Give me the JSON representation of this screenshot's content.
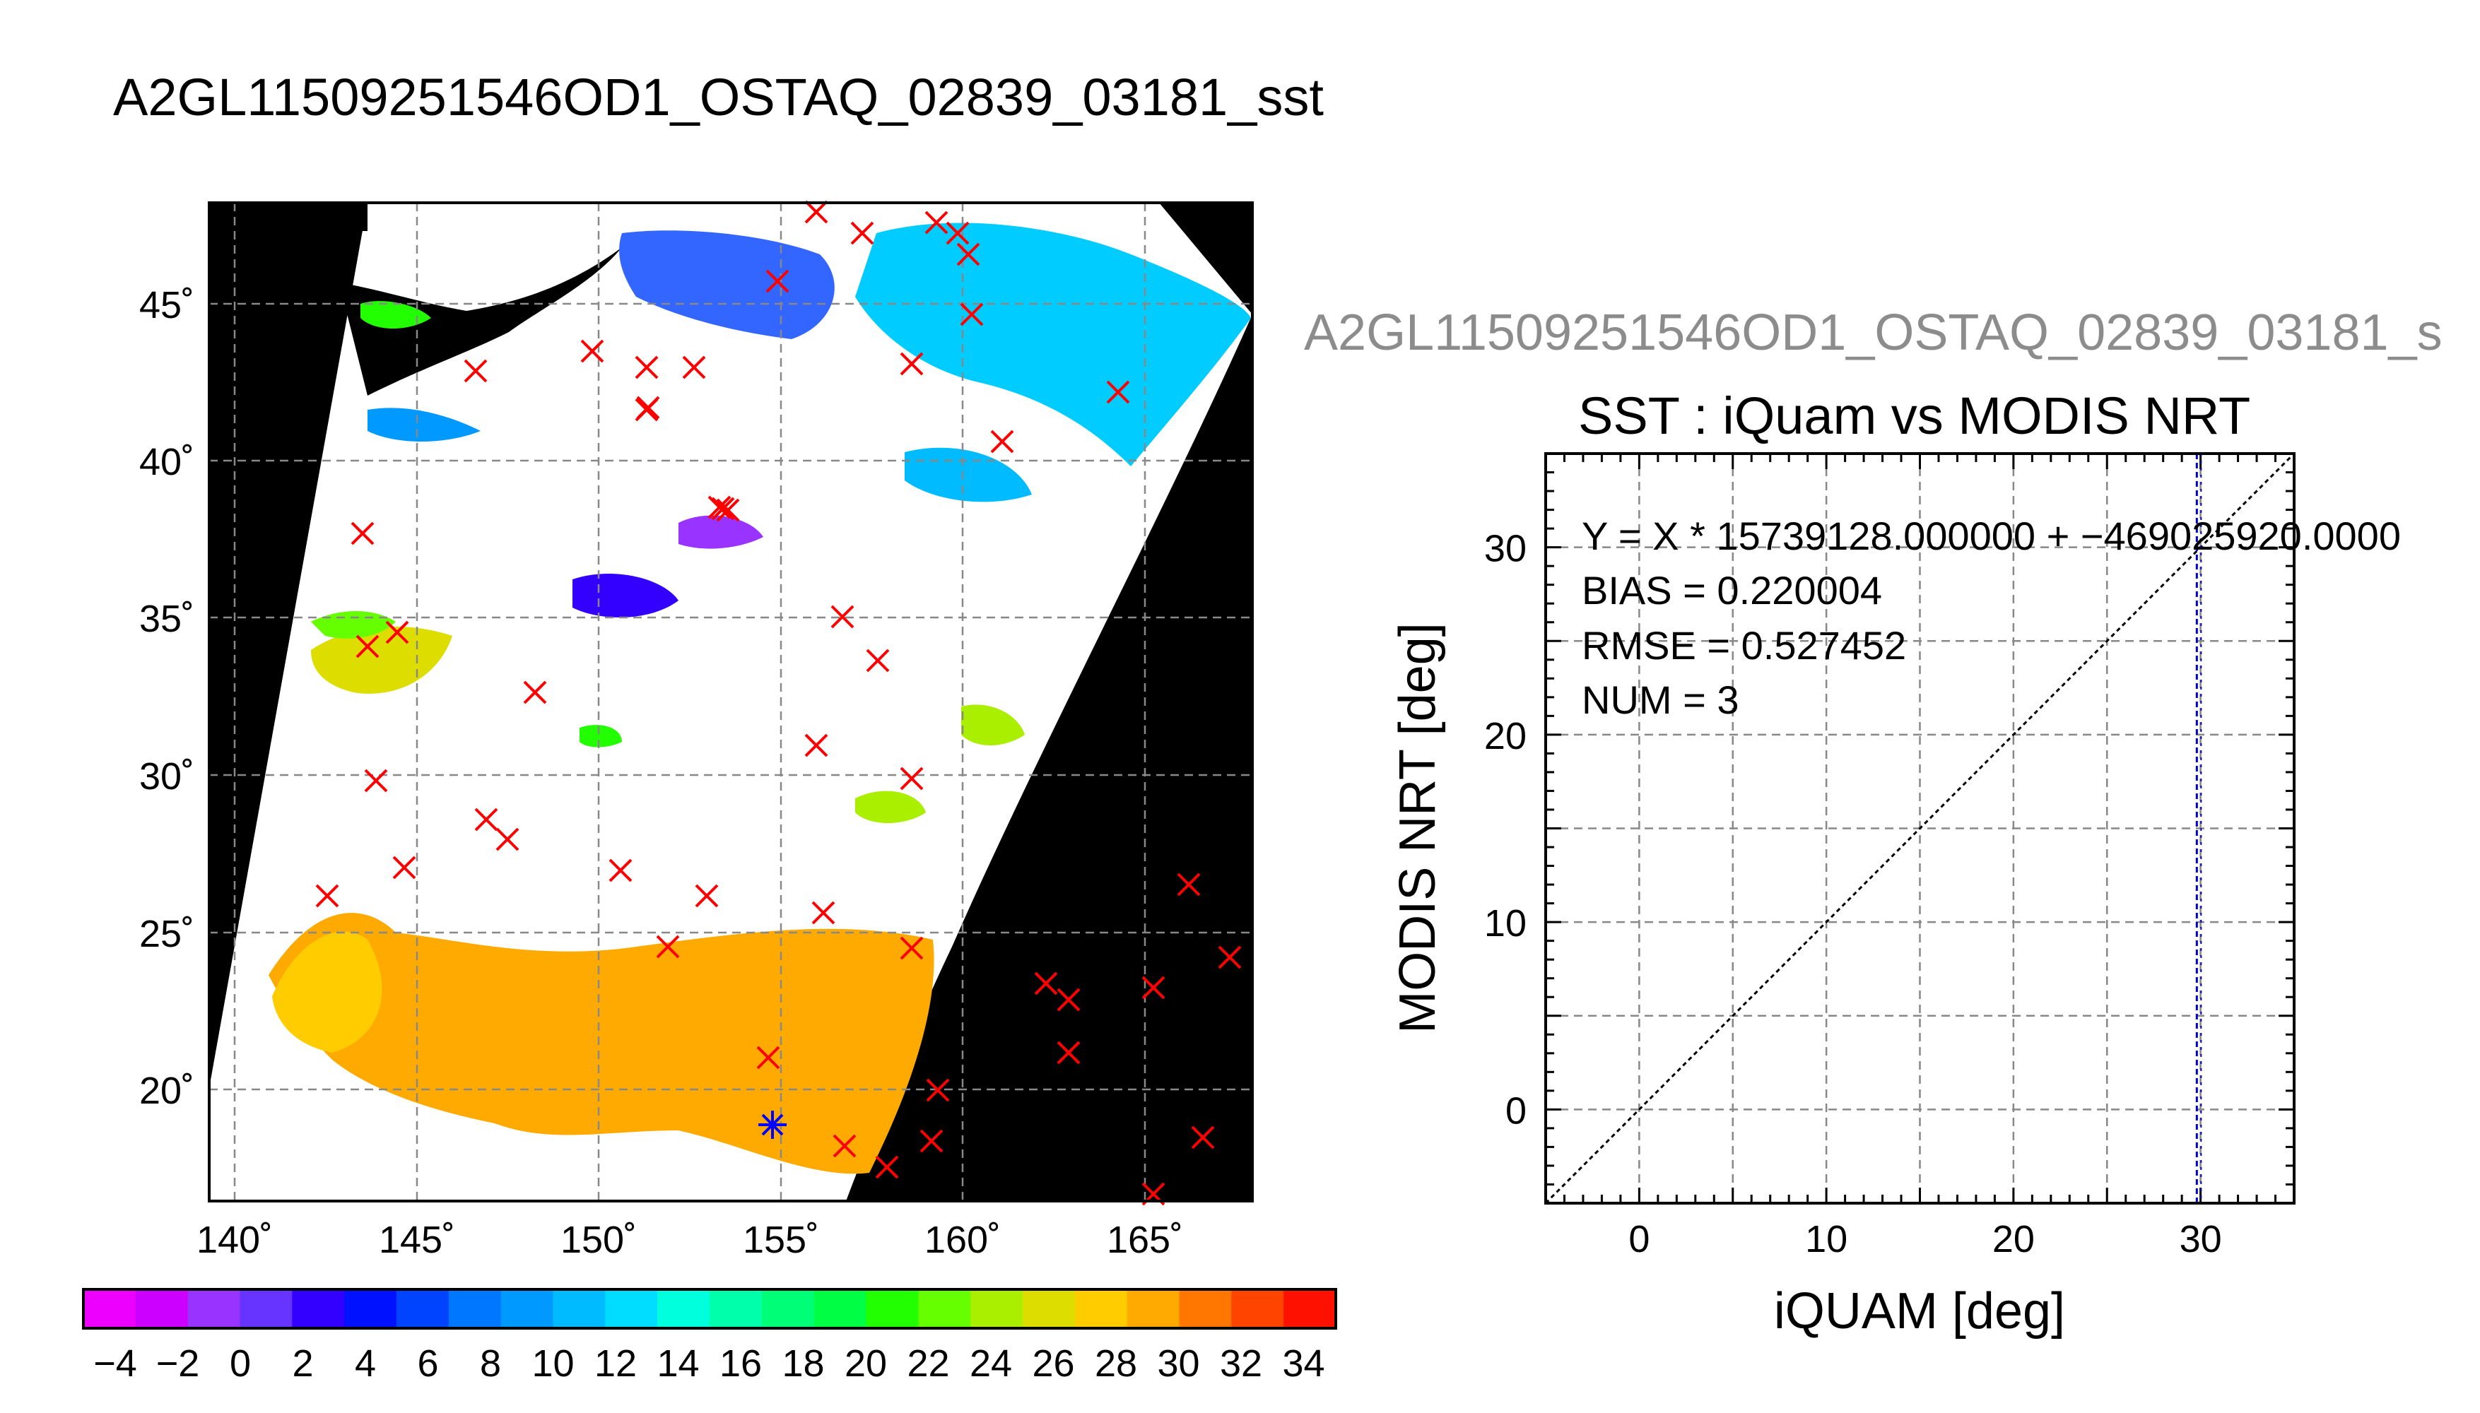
{
  "main_title": "A2GL11509251546OD1_OSTAQ_02839_03181_sst",
  "map": {
    "lat_labels": [
      "45˚",
      "40˚",
      "35˚",
      "30˚",
      "25˚",
      "20˚"
    ],
    "lon_labels": [
      "140˚",
      "145˚",
      "150˚",
      "155˚",
      "160˚",
      "165˚"
    ],
    "colorbar_labels": [
      "−4",
      "−2",
      "0",
      "2",
      "4",
      "6",
      "8",
      "10",
      "12",
      "14",
      "16",
      "18",
      "20",
      "22",
      "24",
      "26",
      "28",
      "30",
      "32",
      "34"
    ],
    "colors": {
      "background": "#000000",
      "cloud": "#ffffff",
      "marker": "#ff0000",
      "match_marker": "#0000ff"
    },
    "colorbar_colors": [
      "#ee00ff",
      "#cc00ff",
      "#9933ff",
      "#6633ff",
      "#3300ff",
      "#0011ff",
      "#0044ff",
      "#0077ff",
      "#0099ff",
      "#00bbff",
      "#00ddff",
      "#00ffdd",
      "#00ffaa",
      "#00ff77",
      "#00ff44",
      "#22ff00",
      "#66ff00",
      "#aaee00",
      "#dddd00",
      "#ffcc00",
      "#ffaa00",
      "#ff7700",
      "#ff4400",
      "#ff1100"
    ]
  },
  "subtitle": "A2GL11509251546OD1_OSTAQ_02839_03181_s",
  "chart_data": {
    "type": "scatter",
    "title": "SST : iQuam vs MODIS NRT",
    "xlabel": "iQUAM [deg]",
    "ylabel": "MODIS NRT [deg]",
    "xlim": [
      -5,
      35
    ],
    "ylim": [
      -5,
      35
    ],
    "x_ticks": [
      "0",
      "10",
      "20",
      "30"
    ],
    "y_ticks": [
      "0",
      "10",
      "20",
      "30"
    ],
    "grid": true,
    "reference_line": "y = x",
    "regression_line_x": 29.8,
    "stats": [
      "Y = X * 15739128.000000 + −469025920.0000",
      "BIAS = 0.220004",
      "RMSE = 0.527452",
      "NUM = 3"
    ]
  }
}
